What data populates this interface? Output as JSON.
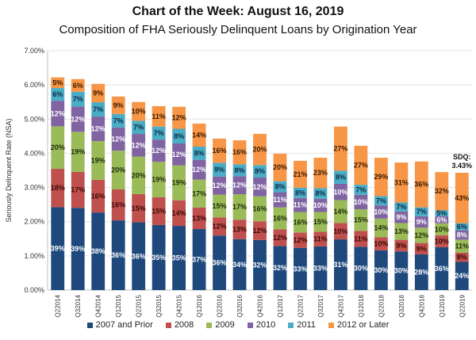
{
  "chart_data": {
    "type": "bar",
    "stacked": true,
    "title": "Chart of the Week: August 16, 2019",
    "subtitle": "Composition of FHA Seriously Delinquent Loans by Origination Year",
    "xlabel": "",
    "ylabel": "Seriously Delinquent Rate (NSA)",
    "ylim": [
      0,
      7
    ],
    "yticks": [
      "0.00%",
      "1.00%",
      "2.00%",
      "3.00%",
      "4.00%",
      "5.00%",
      "6.00%",
      "7.00%"
    ],
    "grid": true,
    "legend_position": "bottom",
    "categories": [
      "Q22014",
      "Q32014",
      "Q42014",
      "Q12015",
      "Q22015",
      "Q32015",
      "Q42015",
      "Q12016",
      "Q22016",
      "Q32016",
      "Q42016",
      "Q12017",
      "Q22017",
      "Q32017",
      "Q42017",
      "Q12018",
      "Q22018",
      "Q32018",
      "Q42018",
      "Q12019",
      "Q22019"
    ],
    "totals": [
      6.22,
      6.17,
      6.03,
      5.66,
      5.5,
      5.38,
      5.36,
      4.87,
      4.43,
      4.38,
      4.57,
      3.99,
      3.78,
      3.87,
      4.78,
      4.22,
      3.87,
      3.73,
      3.76,
      3.45,
      3.43
    ],
    "series": [
      {
        "name": "2007 and Prior",
        "color": "#1f497d",
        "label_color": "#ffffff",
        "shares": [
          39,
          39,
          38,
          36,
          36,
          35,
          35,
          37,
          36,
          34,
          32,
          32,
          33,
          33,
          31,
          30,
          30,
          30,
          28,
          36,
          24
        ]
      },
      {
        "name": "2008",
        "color": "#c0504d",
        "label_color": "#3a0a0a",
        "shares": [
          18,
          17,
          16,
          16,
          15,
          15,
          14,
          13,
          12,
          13,
          12,
          12,
          12,
          11,
          10,
          11,
          10,
          9,
          9,
          10,
          8
        ]
      },
      {
        "name": "2009",
        "color": "#9bbb59",
        "label_color": "#1e2b0a",
        "shares": [
          20,
          19,
          19,
          20,
          20,
          19,
          19,
          17,
          15,
          17,
          16,
          16,
          16,
          15,
          14,
          15,
          14,
          13,
          12,
          10,
          11
        ]
      },
      {
        "name": "2010",
        "color": "#8064a2",
        "label_color": "#ffffff",
        "shares": [
          12,
          12,
          12,
          12,
          12,
          12,
          12,
          12,
          12,
          12,
          12,
          11,
          11,
          10,
          10,
          10,
          10,
          9,
          9,
          6,
          8
        ]
      },
      {
        "name": "2011",
        "color": "#4bacc6",
        "label_color": "#0e2a40",
        "shares": [
          6,
          7,
          7,
          7,
          7,
          7,
          8,
          8,
          9,
          8,
          8,
          8,
          8,
          8,
          8,
          7,
          7,
          7,
          7,
          5,
          6
        ]
      },
      {
        "name": "2012 or Later",
        "color": "#f79646",
        "label_color": "#3a1a00",
        "shares": [
          5,
          6,
          9,
          9,
          10,
          11,
          12,
          14,
          16,
          16,
          20,
          20,
          21,
          23,
          27,
          27,
          29,
          31,
          36,
          32,
          43
        ]
      }
    ],
    "value_format": "percent_share_of_bar",
    "annotations": [
      {
        "category": "Q22019",
        "text_line1": "SDQ:",
        "text_line2": "3.43%"
      }
    ]
  }
}
